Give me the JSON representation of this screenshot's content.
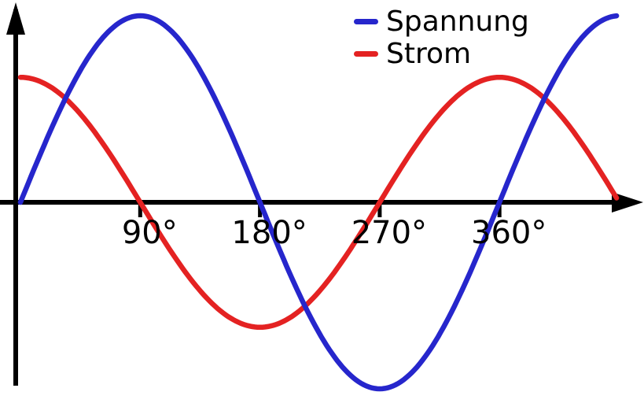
{
  "chart_data": {
    "type": "line",
    "title": "",
    "xlabel": "",
    "ylabel": "",
    "grid": false,
    "legend_position": "top-right",
    "axis_color": "#000000",
    "x_unit": "deg",
    "x_range_deg": [
      0,
      448
    ],
    "x_ticks": [
      {
        "deg": 90,
        "label": "90°"
      },
      {
        "deg": 180,
        "label": "180°"
      },
      {
        "deg": 270,
        "label": "270°"
      },
      {
        "deg": 360,
        "label": "360°"
      }
    ],
    "series": [
      {
        "name": "Spannung",
        "color": "#2626cc",
        "amplitude": 1.0,
        "phase_deg": 0
      },
      {
        "name": "Strom",
        "color": "#e42222",
        "amplitude": 0.67,
        "phase_deg": 90
      }
    ]
  }
}
